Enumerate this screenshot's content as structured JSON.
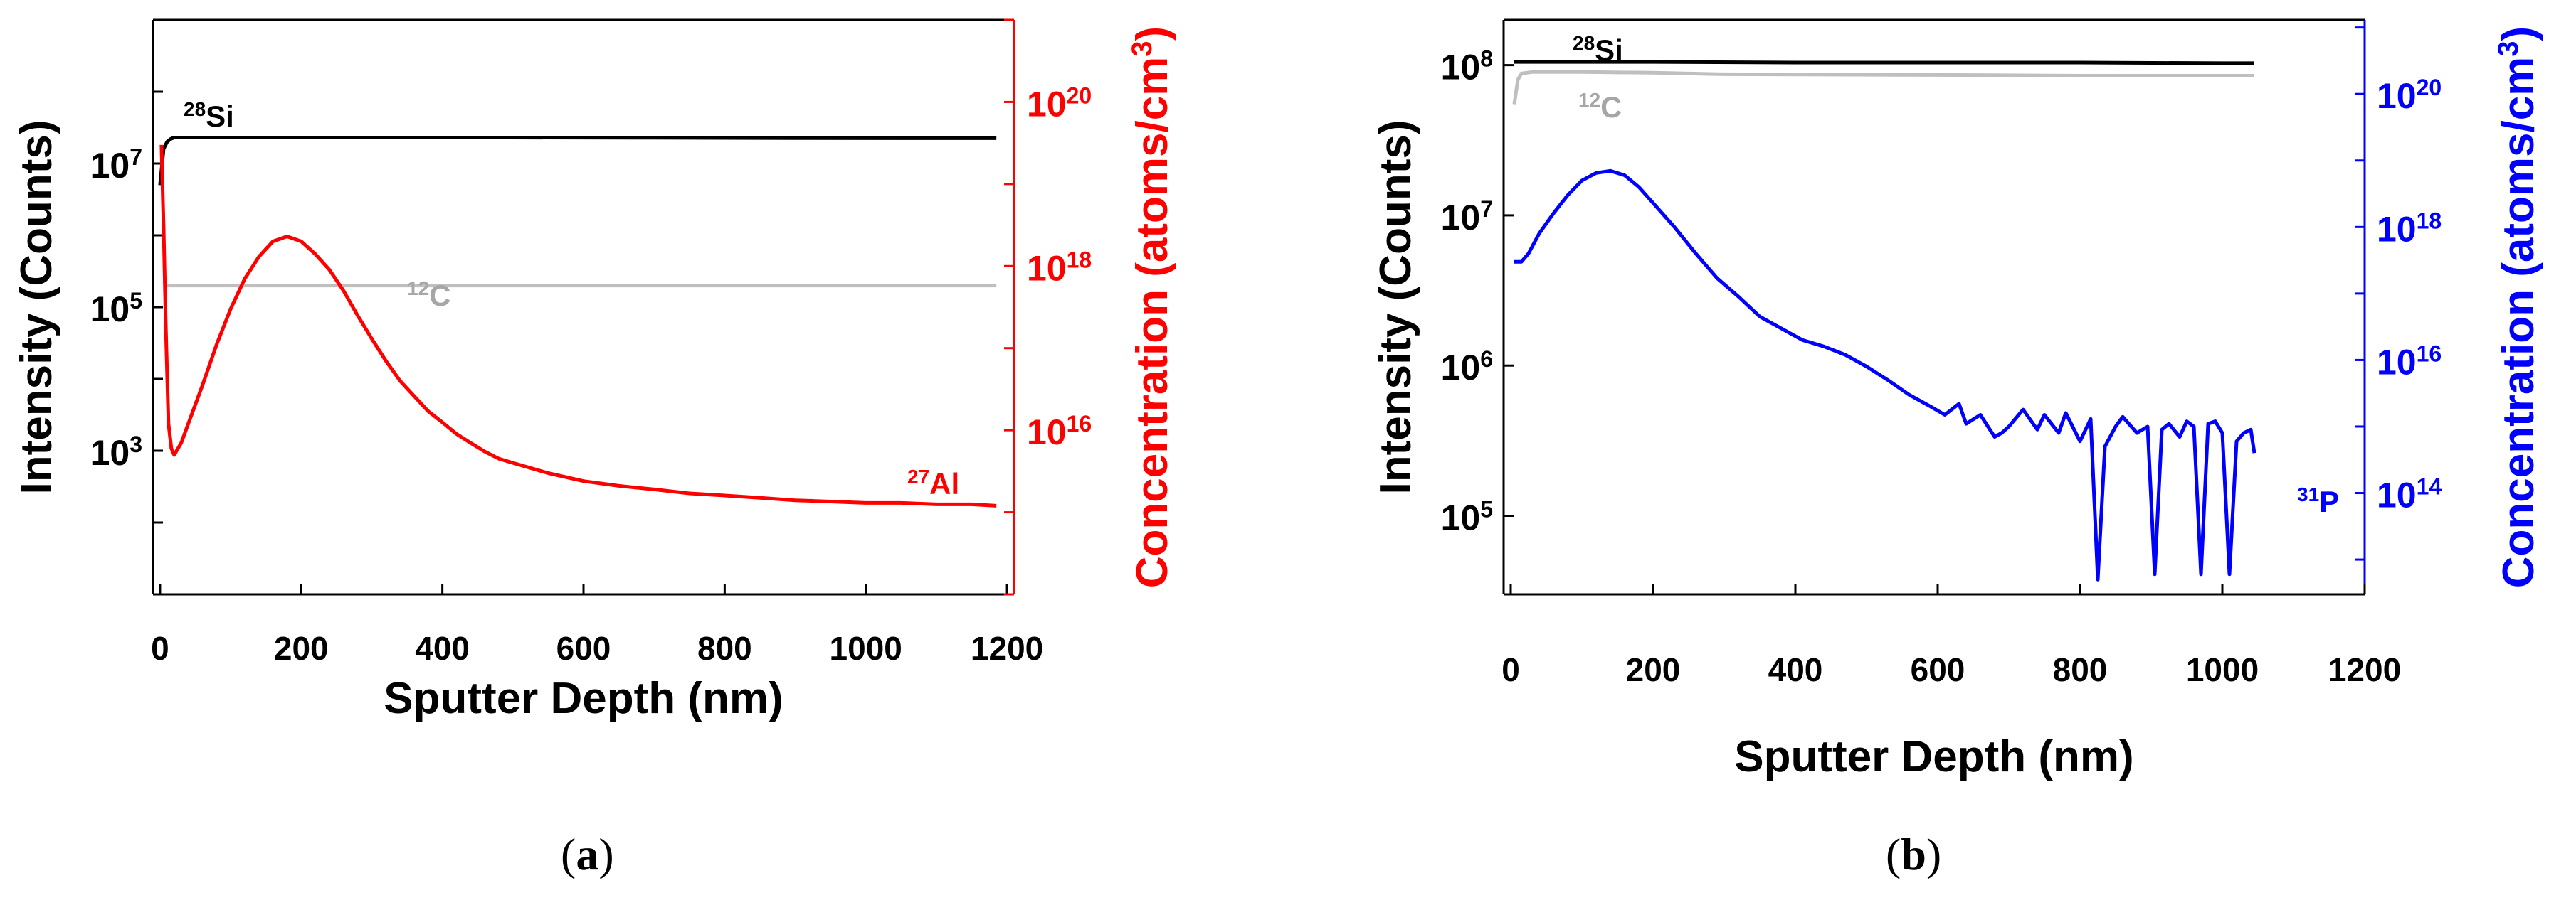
{
  "chart_data": [
    {
      "type": "line",
      "panel_label_open": "(",
      "panel_label": "a",
      "panel_label_close": ")",
      "xlabel": "Sputter Depth (nm)",
      "ylabel": "Intensity (Counts)",
      "y2label": "Concentration (atoms/cm3)",
      "y2label_text": "Concentration (atoms/cm",
      "y2label_sup": "3",
      "y2label_close": ")",
      "y2color": "#ff0000",
      "xlim": [
        -10,
        1210
      ],
      "ylim": [
        10,
        1000000000
      ],
      "y2lim": [
        100000000000000.0,
        1e+21
      ],
      "xticks": [
        0,
        200,
        400,
        600,
        800,
        1000,
        1200
      ],
      "yticks": [
        {
          "value": 1000,
          "base": "10",
          "exp": "3"
        },
        {
          "value": 100000,
          "base": "10",
          "exp": "5"
        },
        {
          "value": 10000000,
          "base": "10",
          "exp": "7"
        }
      ],
      "y2ticks": [
        {
          "value": 1e+16,
          "base": "10",
          "exp": "16"
        },
        {
          "value": 1e+18,
          "base": "10",
          "exp": "18"
        },
        {
          "value": 1e+20,
          "base": "10",
          "exp": "20"
        }
      ],
      "series": [
        {
          "name": "28Si",
          "label_sup": "28",
          "label_main": "Si",
          "color": "#000000",
          "axis": "y",
          "x": [
            0,
            5,
            10,
            15,
            20,
            30,
            100,
            300,
            500,
            700,
            900,
            1100,
            1185
          ],
          "values": [
            5000000,
            16000000,
            20000000,
            22000000,
            23000000,
            23000000,
            23000000,
            23000000,
            23000000,
            22800000,
            22600000,
            22500000,
            22500000
          ]
        },
        {
          "name": "12C",
          "label_sup": "12",
          "label_main": "C",
          "color": "#bfbfbf",
          "axis": "y",
          "x": [
            5,
            100,
            400,
            800,
            1185
          ],
          "values": [
            200000,
            200000,
            200000,
            200000,
            200000
          ]
        },
        {
          "name": "27Al",
          "label_sup": "27",
          "label_main": "Al",
          "color": "#ff0000",
          "axis": "y2",
          "x": [
            2,
            5,
            8,
            12,
            16,
            20,
            30,
            40,
            60,
            80,
            100,
            120,
            140,
            160,
            180,
            200,
            220,
            240,
            260,
            280,
            300,
            320,
            340,
            360,
            380,
            400,
            420,
            440,
            460,
            480,
            500,
            550,
            600,
            650,
            700,
            750,
            800,
            850,
            900,
            950,
            1000,
            1050,
            1100,
            1150,
            1185
          ],
          "values": [
            3e+19,
            3e+18,
            2e+17,
            1.2e+16,
            6000000000000000.0,
            5000000000000000.0,
            7000000000000000.0,
            1.2e+16,
            3.5e+16,
            1.1e+17,
            3e+17,
            7e+17,
            1.3e+18,
            2e+18,
            2.3e+18,
            2e+18,
            1.4e+18,
            9e+17,
            5e+17,
            2.5e+17,
            1.3e+17,
            7e+16,
            4e+16,
            2.6e+16,
            1.7e+16,
            1.25e+16,
            9000000000000000.0,
            7000000000000000.0,
            5500000000000000.0,
            4500000000000000.0,
            4000000000000000.0,
            3000000000000000.0,
            2400000000000000.0,
            2100000000000000.0,
            1900000000000000.0,
            1700000000000000.0,
            1600000000000000.0,
            1500000000000000.0,
            1400000000000000.0,
            1350000000000000.0,
            1300000000000000.0,
            1300000000000000.0,
            1250000000000000.0,
            1250000000000000.0,
            1200000000000000.0
          ]
        }
      ]
    },
    {
      "type": "line",
      "panel_label_open": "(",
      "panel_label": "b",
      "panel_label_close": ")",
      "xlabel": "Sputter Depth (nm)",
      "ylabel": "Intensity (Counts)",
      "y2label": "Concentration (atoms/cm3)",
      "y2label_text": "Concentration (atoms/cm",
      "y2label_sup": "3",
      "y2label_close": ")",
      "y2color": "#0000ff",
      "xlim": [
        -10,
        1200
      ],
      "ylim": [
        30000,
        200000000
      ],
      "y2lim": [
        3000000000000.0,
        1.3e+21
      ],
      "xticks": [
        0,
        200,
        400,
        600,
        800,
        1000,
        1200
      ],
      "yticks": [
        {
          "value": 100000,
          "base": "10",
          "exp": "5"
        },
        {
          "value": 1000000,
          "base": "10",
          "exp": "6"
        },
        {
          "value": 10000000,
          "base": "10",
          "exp": "7"
        },
        {
          "value": 100000000,
          "base": "10",
          "exp": "8"
        }
      ],
      "y2ticks": [
        {
          "value": 100000000000000.0,
          "base": "10",
          "exp": "14"
        },
        {
          "value": 1e+16,
          "base": "10",
          "exp": "16"
        },
        {
          "value": 1e+18,
          "base": "10",
          "exp": "18"
        },
        {
          "value": 1e+20,
          "base": "10",
          "exp": "20"
        }
      ],
      "series": [
        {
          "name": "28Si",
          "label_sup": "28",
          "label_main": "Si",
          "color": "#000000",
          "axis": "y",
          "x": [
            5,
            200,
            400,
            600,
            800,
            1000,
            1045
          ],
          "values": [
            105000000,
            105000000,
            104000000,
            104000000,
            104000000,
            103000000,
            103000000
          ]
        },
        {
          "name": "12C",
          "label_sup": "12",
          "label_main": "C",
          "color": "#bfbfbf",
          "axis": "y",
          "x": [
            5,
            10,
            15,
            30,
            100,
            200,
            300,
            600,
            800,
            1045
          ],
          "values": [
            55000000,
            80000000,
            88000000,
            90000000,
            90000000,
            89000000,
            87000000,
            86000000,
            85000000,
            85000000
          ]
        },
        {
          "name": "31P",
          "label_sup": "31",
          "label_main": "P",
          "color": "#0000ff",
          "axis": "y2",
          "x": [
            5,
            15,
            25,
            40,
            60,
            80,
            100,
            120,
            140,
            160,
            180,
            200,
            230,
            260,
            290,
            320,
            350,
            380,
            410,
            440,
            470,
            500,
            530,
            560,
            590,
            610,
            630,
            640,
            660,
            680,
            690,
            700,
            720,
            740,
            750,
            770,
            780,
            800,
            815,
            825,
            835,
            850,
            860,
            880,
            895,
            905,
            915,
            925,
            940,
            950,
            960,
            970,
            980,
            990,
            1000,
            1010,
            1020,
            1030,
            1040,
            1045
          ],
          "values": [
            3e+17,
            3e+17,
            4e+17,
            8e+17,
            1.6e+18,
            3e+18,
            5e+18,
            6.5e+18,
            7e+18,
            6e+18,
            4e+18,
            2.3e+18,
            1e+18,
            4e+17,
            1.7e+17,
            9e+16,
            4.5e+16,
            3e+16,
            2e+16,
            1.6e+16,
            1.2e+16,
            8000000000000000.0,
            5000000000000000.0,
            3000000000000000.0,
            2000000000000000.0,
            1500000000000000.0,
            2200000000000000.0,
            1100000000000000.0,
            1500000000000000.0,
            700000000000000.0,
            800000000000000.0,
            1000000000000000.0,
            1800000000000000.0,
            900000000000000.0,
            1500000000000000.0,
            800000000000000.0,
            1600000000000000.0,
            600000000000000.0,
            1300000000000000.0,
            5000000000000.0,
            500000000000000.0,
            1000000000000000.0,
            1400000000000000.0,
            800000000000000.0,
            1000000000000000.0,
            6000000000000.0,
            900000000000000.0,
            1100000000000000.0,
            700000000000000.0,
            1200000000000000.0,
            1000000000000000.0,
            6000000000000.0,
            1100000000000000.0,
            1200000000000000.0,
            800000000000000.0,
            6000000000000.0,
            600000000000000.0,
            800000000000000.0,
            900000000000000.0,
            400000000000000.0
          ]
        }
      ]
    }
  ]
}
